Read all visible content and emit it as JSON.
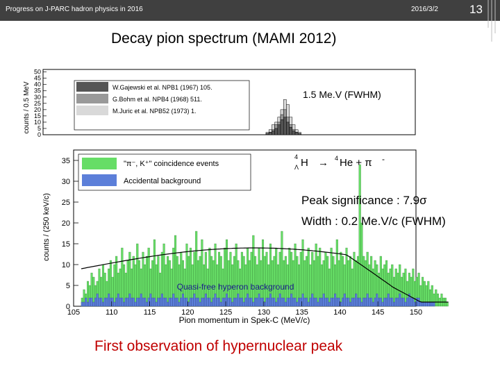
{
  "header": {
    "left_text": "Progress on J-PARC hadron physics in 2016",
    "date": "2016/3/2",
    "slide_number": "13"
  },
  "title": "Decay pion spectrum (MAMI 2012)",
  "footer": "First observation of hypernuclear peak",
  "annotations": {
    "fwhm_top": "1.5 Me.V (FWHM)",
    "reaction_H": "H",
    "reaction_arrow": "→",
    "reaction_he": "He + π",
    "reaction_minus": "-",
    "reaction_sup4": "4",
    "reaction_sup4b": "4",
    "reaction_sub": "Λ",
    "significance": "Peak significance : 7.9σ",
    "width": "Width : 0.2 Me.V/c (FWHM)"
  },
  "chart_data": [
    {
      "type": "bar",
      "ylabel": "counts / 0.5 MeV",
      "y_ticks": [
        "0",
        "5",
        "10",
        "15",
        "20",
        "25",
        "30",
        "35",
        "40",
        "45",
        "50"
      ],
      "ylim": [
        0,
        52
      ],
      "legend": [
        "W.Gajewski et al. NPB1 (1967) 105.",
        "G.Bohm et al. NPB4 (1968) 511.",
        "M.Juric et al. NPB52 (1973) 1."
      ],
      "series": [
        {
          "name": "M.Juric et al. NPB52 (1973) 1.",
          "values": [
            2,
            4,
            8,
            10,
            14,
            20,
            28,
            24,
            14,
            8,
            4,
            2
          ]
        },
        {
          "name": "G.Bohm et al. NPB4 (1968) 511.",
          "values": [
            1,
            2,
            4,
            8,
            10,
            16,
            20,
            14,
            8,
            4,
            2,
            1
          ]
        },
        {
          "name": "W.Gajewski et al. NPB1 (1967) 105.",
          "values": [
            1,
            2,
            3,
            5,
            8,
            12,
            14,
            10,
            6,
            3,
            2,
            1
          ]
        }
      ]
    },
    {
      "type": "bar",
      "xlabel": "Pion momentum in Spek-C (MeV/c)",
      "ylabel": "counts / (250 keV/c)",
      "xlim": [
        105,
        150
      ],
      "ylim": [
        0,
        37.5
      ],
      "x_ticks": [
        "105",
        "110",
        "115",
        "120",
        "125",
        "130",
        "135",
        "140",
        "145",
        "150"
      ],
      "y_ticks": [
        "0",
        "5",
        "10",
        "15",
        "20",
        "25",
        "30",
        "35"
      ],
      "legend": [
        "\"π⁻, K⁺\" coincidence events",
        "Accidental background"
      ],
      "annotation": "Quasi-free hyperon background",
      "bin_start": 106.0,
      "bin_width": 0.25,
      "series": [
        {
          "name": "\"π⁻, K⁺\" coincidence events",
          "values": [
            2,
            4,
            3,
            6,
            5,
            8,
            7,
            5,
            6,
            9,
            7,
            10,
            8,
            6,
            9,
            11,
            7,
            10,
            12,
            8,
            9,
            14,
            10,
            8,
            11,
            13,
            9,
            12,
            10,
            15,
            11,
            9,
            13,
            10,
            12,
            14,
            9,
            11,
            16,
            10,
            12,
            8,
            13,
            15,
            10,
            12,
            11,
            9,
            14,
            17,
            12,
            10,
            13,
            11,
            9,
            15,
            12,
            14,
            10,
            13,
            18,
            11,
            12,
            16,
            10,
            13,
            9,
            14,
            12,
            11,
            15,
            10,
            13,
            12,
            9,
            14,
            16,
            11,
            13,
            10,
            12,
            15,
            11,
            9,
            13,
            12,
            10,
            14,
            11,
            13,
            17,
            12,
            10,
            14,
            11,
            16,
            12,
            13,
            10,
            15,
            11,
            12,
            14,
            10,
            13,
            18,
            11,
            12,
            10,
            14,
            13,
            11,
            15,
            12,
            10,
            13,
            16,
            11,
            12,
            14,
            10,
            13,
            11,
            15,
            12,
            14,
            10,
            11,
            13,
            12,
            9,
            14,
            12,
            10,
            16,
            11,
            13,
            12,
            10,
            14,
            11,
            12,
            9,
            13,
            11,
            12,
            34,
            20,
            12,
            11,
            13,
            10,
            12,
            9,
            11,
            10,
            8,
            12,
            9,
            10,
            11,
            8,
            9,
            10,
            7,
            9,
            8,
            10,
            7,
            8,
            9,
            6,
            8,
            7,
            9,
            6,
            7,
            8,
            5,
            7,
            6,
            5,
            6,
            4,
            5,
            3,
            4,
            3,
            2,
            3,
            2,
            2,
            1
          ]
        },
        {
          "name": "Accidental background",
          "values": [
            1,
            1,
            2,
            1,
            2,
            2,
            1,
            2,
            3,
            2,
            2,
            1,
            2,
            2,
            3,
            2,
            2,
            1,
            2,
            3,
            2,
            2,
            1,
            2,
            2,
            3,
            2,
            2,
            1,
            2,
            2,
            3,
            2,
            2,
            1,
            2,
            3,
            2,
            2,
            1,
            2,
            2,
            3,
            2,
            2,
            1,
            2,
            2,
            3,
            2,
            2,
            1,
            2,
            3,
            2,
            2,
            1,
            2,
            2,
            3,
            2,
            2,
            1,
            2,
            2,
            3,
            2,
            2,
            1,
            2,
            3,
            2,
            2,
            1,
            2,
            2,
            3,
            2,
            2,
            1,
            2,
            2,
            3,
            2,
            2,
            1,
            2,
            3,
            2,
            2,
            1,
            2,
            2,
            3,
            2,
            2,
            1,
            2,
            2,
            3,
            2,
            2,
            1,
            2,
            3,
            2,
            2,
            1,
            2,
            2,
            3,
            2,
            2,
            1,
            2,
            2,
            3,
            2,
            2,
            1,
            2,
            3,
            2,
            2,
            1,
            2,
            2,
            3,
            2,
            2,
            1,
            2,
            2,
            3,
            2,
            2,
            1,
            2,
            3,
            2,
            2,
            1,
            2,
            2,
            3,
            2,
            2,
            1,
            2,
            2,
            3,
            2,
            2,
            1,
            2,
            3,
            2,
            2,
            1,
            2,
            2,
            3,
            2,
            2,
            1,
            2,
            2,
            3,
            2,
            2,
            1,
            2,
            3,
            2,
            2,
            1,
            2,
            2,
            1,
            1,
            1,
            1,
            1,
            1,
            1,
            1
          ]
        }
      ]
    }
  ]
}
